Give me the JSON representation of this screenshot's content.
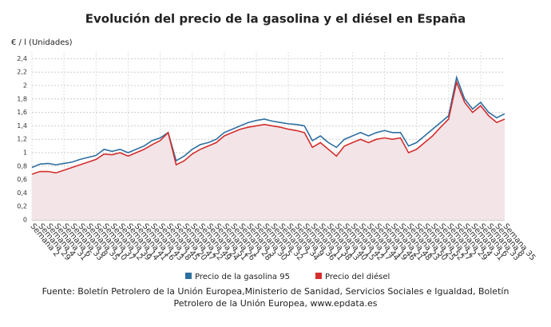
{
  "chart_data": {
    "type": "line",
    "title": "Evolución del precio de la gasolina y el diésel en España",
    "y_label": "€ / l (Unidades)",
    "source": "Fuente: Boletín Petrolero de la Unión Europea,Ministerio de Sanidad, Servicios Sociales e Igualdad, Boletín Petrolero de la Unión Europea, www.epdata.es",
    "categories": [
      "Semana 2",
      "Semana 29",
      "Semana 4",
      "Semana 31",
      "Semana 6",
      "Semana 33",
      "Semana 8",
      "Semana 35",
      "Semana 10",
      "Semana 37",
      "Semana 12",
      "Semana 39",
      "Semana 14",
      "Semana 41",
      "Semana 16",
      "Semana 43",
      "Semana 18",
      "Semana 45",
      "Semana 20",
      "Semana 47",
      "Semana 22",
      "Semana 49",
      "Semana 24",
      "Semana 51",
      "Semana 26",
      "Semana 1",
      "Semana 28",
      "Semana 3",
      "Semana 30",
      "Semana 5",
      "Semana 32",
      "Semana 7",
      "Semana 34",
      "Semana 9",
      "Semana 36",
      "Semana 11",
      "Semana 38",
      "Semana 13",
      "Semana 40",
      "Semana 15",
      "Semana 42",
      "Semana 17",
      "Semana 44",
      "Semana 19",
      "Semana 46",
      "Semana 21",
      "Semana 48",
      "Semana 23",
      "Semana 50",
      "Semana 25",
      "Semana 52",
      "Semana 27",
      "Semana 2",
      "Semana 29",
      "Semana 4",
      "Semana 31",
      "Semana 6",
      "Semana 33",
      "Semana 8",
      "Semana 35"
    ],
    "series": [
      {
        "name": "Precio de la gasolina 95",
        "color": "#2f6f9f",
        "values": [
          0.78,
          0.83,
          0.84,
          0.82,
          0.84,
          0.86,
          0.9,
          0.93,
          0.96,
          1.05,
          1.02,
          1.05,
          1.0,
          1.05,
          1.1,
          1.18,
          1.22,
          1.3,
          0.88,
          0.95,
          1.05,
          1.12,
          1.15,
          1.2,
          1.3,
          1.35,
          1.4,
          1.45,
          1.48,
          1.5,
          1.47,
          1.45,
          1.43,
          1.42,
          1.4,
          1.18,
          1.25,
          1.15,
          1.08,
          1.2,
          1.25,
          1.3,
          1.25,
          1.3,
          1.33,
          1.3,
          1.3,
          1.1,
          1.15,
          1.25,
          1.35,
          1.45,
          1.55,
          2.12,
          1.8,
          1.65,
          1.75,
          1.6,
          1.52,
          1.58
        ]
      },
      {
        "name": "Precio del diésel",
        "color": "#d32f2f",
        "values": [
          0.68,
          0.72,
          0.72,
          0.7,
          0.74,
          0.78,
          0.82,
          0.86,
          0.9,
          0.98,
          0.97,
          1.0,
          0.95,
          1.0,
          1.05,
          1.12,
          1.18,
          1.3,
          0.82,
          0.88,
          0.98,
          1.05,
          1.1,
          1.15,
          1.25,
          1.3,
          1.35,
          1.38,
          1.4,
          1.42,
          1.4,
          1.38,
          1.35,
          1.33,
          1.3,
          1.08,
          1.15,
          1.05,
          0.95,
          1.1,
          1.15,
          1.2,
          1.15,
          1.2,
          1.22,
          1.2,
          1.22,
          1.0,
          1.05,
          1.15,
          1.25,
          1.38,
          1.5,
          2.05,
          1.75,
          1.6,
          1.7,
          1.55,
          1.45,
          1.5
        ]
      }
    ],
    "area_color": "#f3e4e7",
    "ylim": [
      0,
      2.5
    ],
    "yticks": [
      0,
      {
        "value": 0.2,
        "label": "0,2"
      },
      {
        "value": 0.4,
        "label": "0,4"
      },
      {
        "value": 0.6,
        "label": "0,6"
      },
      {
        "value": 0.8,
        "label": "0,8"
      },
      1,
      {
        "value": 1.2,
        "label": "1,2"
      },
      {
        "value": 1.4,
        "label": "1,4"
      },
      {
        "value": 1.6,
        "label": "1,6"
      },
      {
        "value": 1.8,
        "label": "1,8"
      },
      2,
      {
        "value": 2.2,
        "label": "2,2"
      },
      {
        "value": 2.4,
        "label": "2,4"
      }
    ],
    "grid": true
  }
}
